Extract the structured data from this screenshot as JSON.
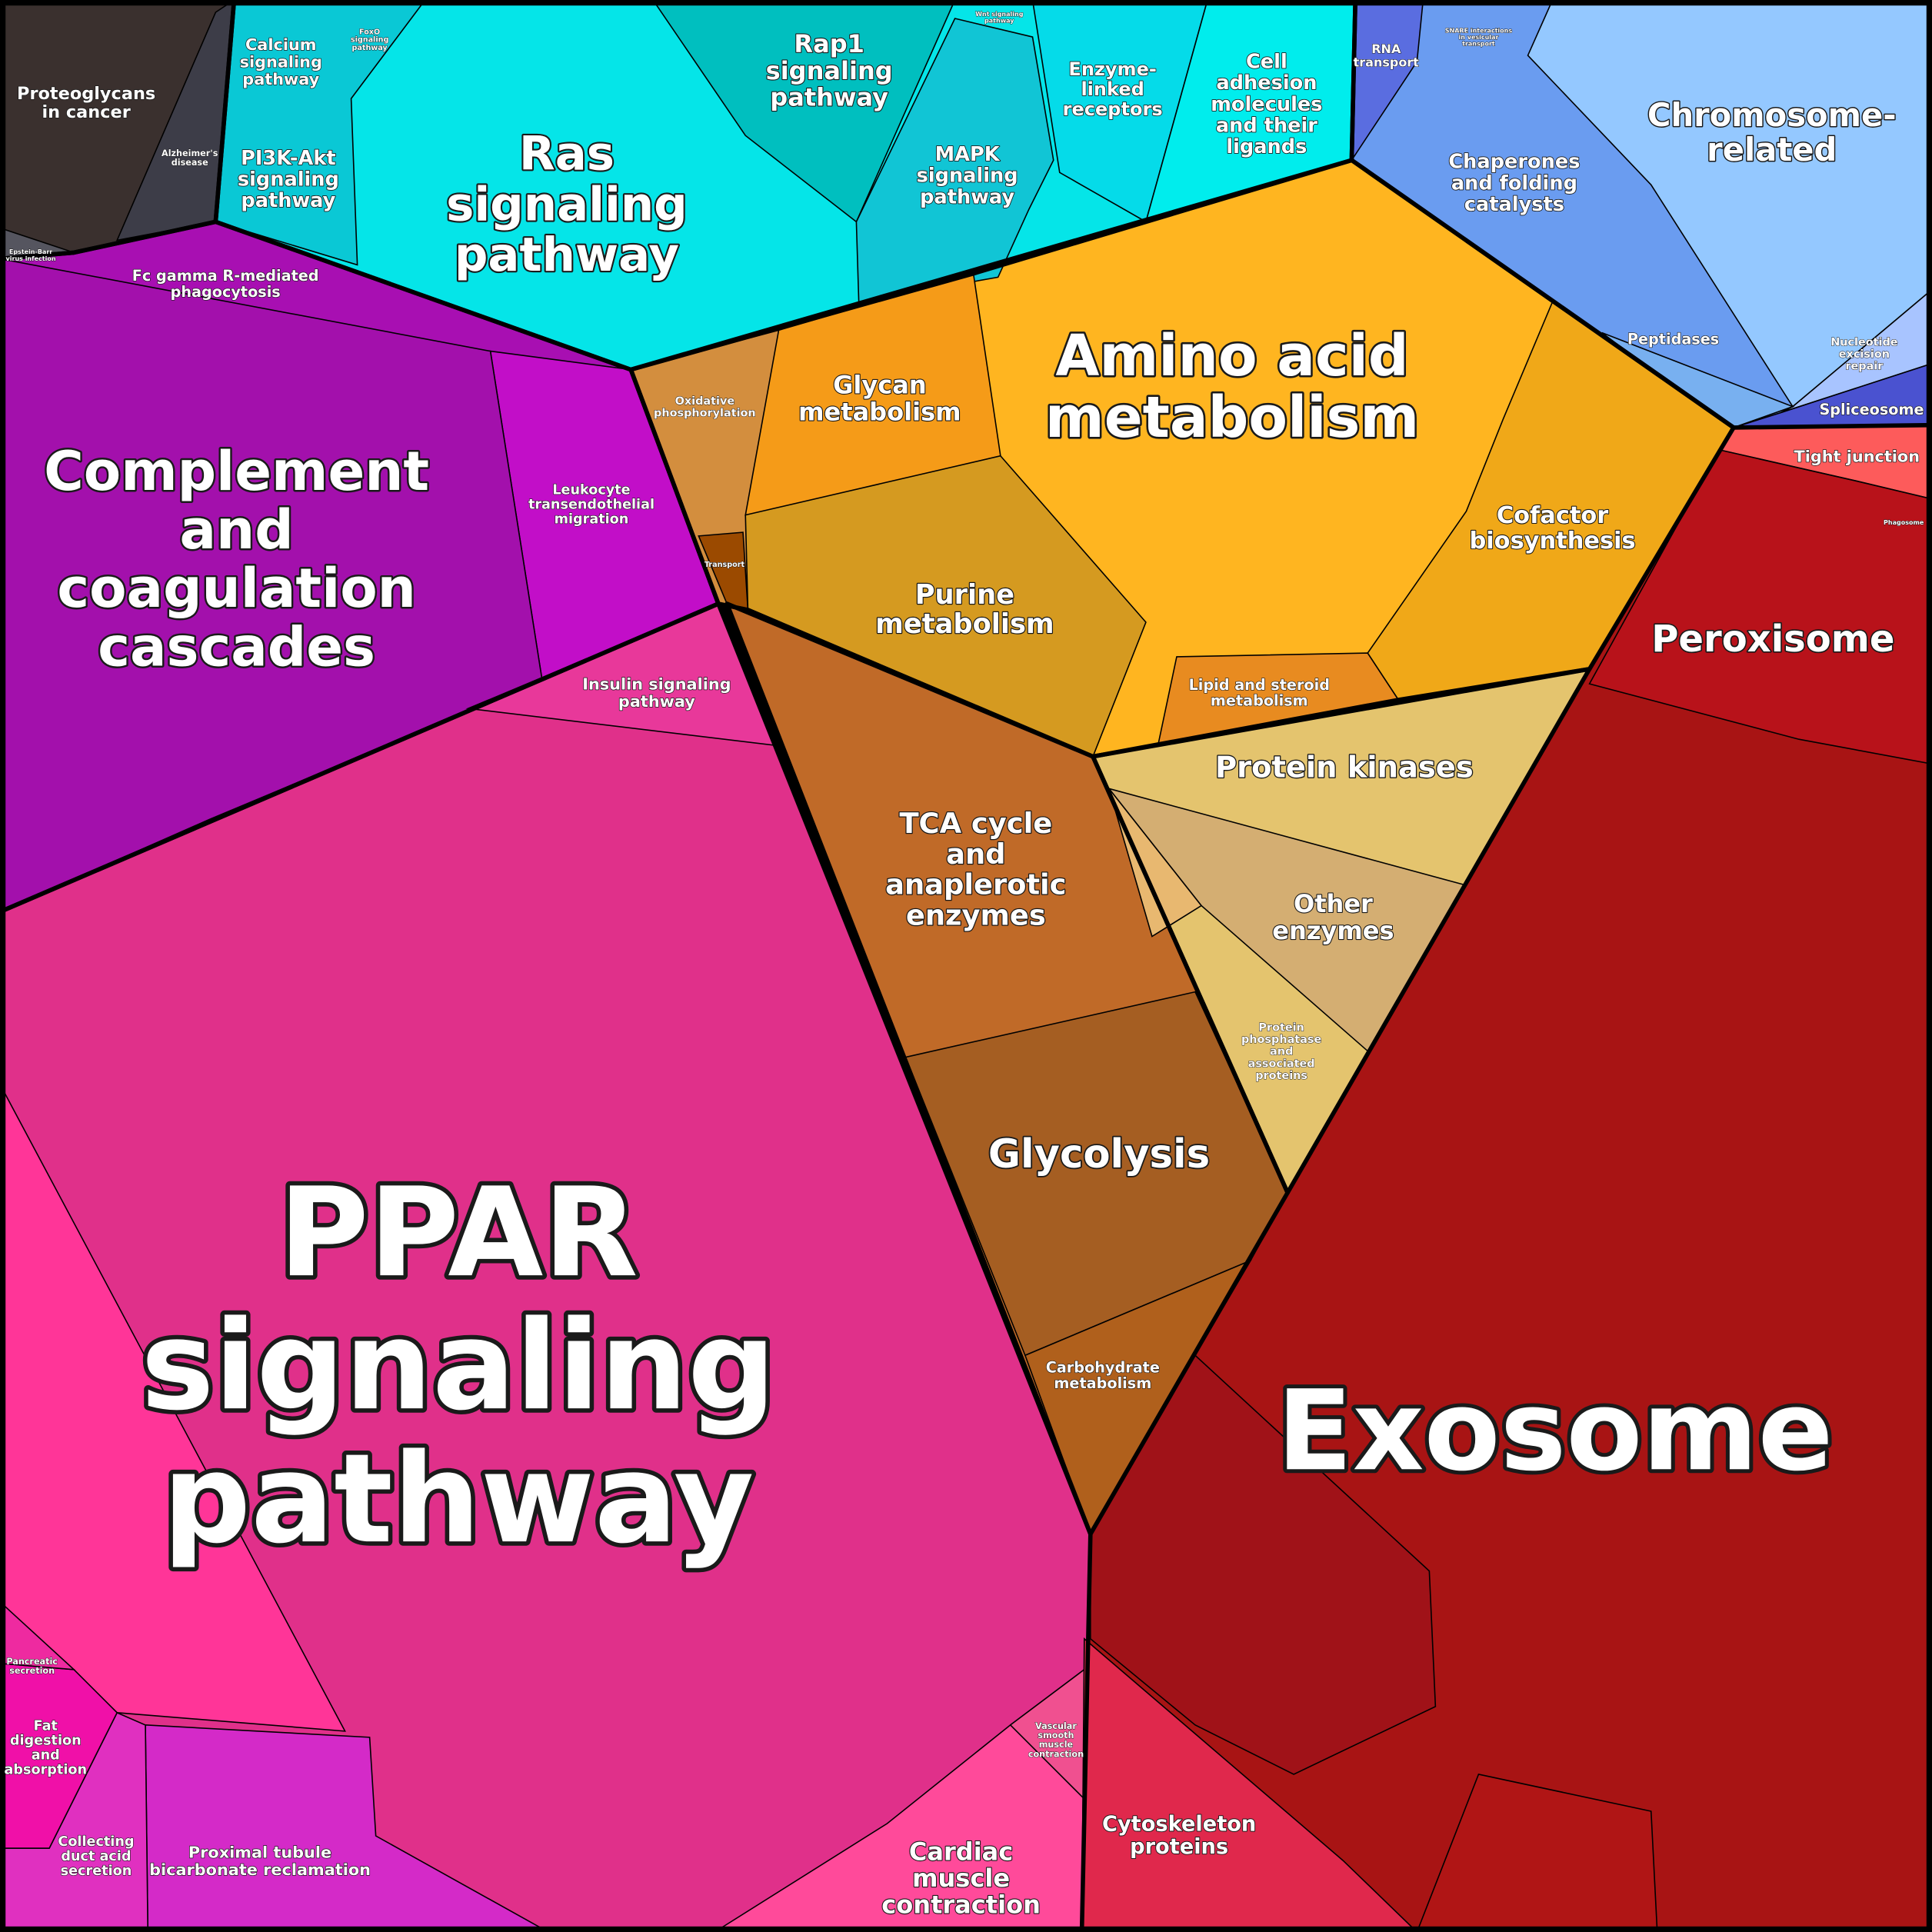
{
  "cells": [
    {
      "lines": [
        "Proteoglycans",
        "in cancer"
      ]
    },
    {
      "lines": [
        "Alzheimer's",
        "disease"
      ]
    },
    {
      "lines": [
        "Epstein-Barr",
        "virus infection"
      ]
    },
    {
      "lines": [
        "Calcium",
        "signaling",
        "pathway"
      ]
    },
    {
      "lines": [
        "FoxO",
        "signaling",
        "pathway"
      ]
    },
    {
      "lines": [
        "PI3K-Akt",
        "signaling",
        "pathway"
      ]
    },
    {
      "lines": [
        "Ras",
        "signaling",
        "pathway"
      ]
    },
    {
      "lines": [
        "Rap1",
        "signaling",
        "pathway"
      ]
    },
    {
      "lines": [
        "Wnt signaling",
        "pathway"
      ]
    },
    {
      "lines": [
        "MAPK",
        "signaling",
        "pathway"
      ]
    },
    {
      "lines": [
        "Enzyme-",
        "linked",
        "receptors"
      ]
    },
    {
      "lines": [
        "Cell",
        "adhesion",
        "molecules",
        "and their",
        "ligands"
      ]
    },
    {
      "lines": [
        "RNA",
        "transport"
      ]
    },
    {
      "lines": [
        "SNARE interactions",
        "in vesicular",
        "transport"
      ]
    },
    {
      "lines": [
        "Chromosome-",
        "related"
      ]
    },
    {
      "lines": [
        "Chaperones",
        "and folding",
        "catalysts"
      ]
    },
    {
      "lines": [
        "Peptidases"
      ]
    },
    {
      "lines": [
        "Nucleotide",
        "excision",
        "repair"
      ]
    },
    {
      "lines": [
        "Spliceosome"
      ]
    },
    {
      "lines": [
        "Fc gamma R-mediated",
        "phagocytosis"
      ]
    },
    {
      "lines": [
        "Complement",
        "and",
        "coagulation",
        "cascades"
      ]
    },
    {
      "lines": [
        "Leukocyte",
        "transendothelial",
        "migration"
      ]
    },
    {
      "lines": [
        "Oxidative",
        "phosphorylation"
      ]
    },
    {
      "lines": [
        "Transport"
      ]
    },
    {
      "lines": [
        "Glycan",
        "metabolism"
      ]
    },
    {
      "lines": [
        "Amino acid",
        "metabolism"
      ]
    },
    {
      "lines": [
        "Cofactor",
        "biosynthesis"
      ]
    },
    {
      "lines": [
        "Purine",
        "metabolism"
      ]
    },
    {
      "lines": [
        "Lipid and steroid",
        "metabolism"
      ]
    },
    {
      "lines": [
        "Insulin signaling",
        "pathway"
      ]
    },
    {
      "lines": [
        "Protein kinases"
      ]
    },
    {
      "lines": [
        "TCA cycle",
        "and",
        "anaplerotic",
        "enzymes"
      ]
    },
    {
      "lines": [
        "Other",
        "enzymes"
      ]
    },
    {
      "lines": [
        "Protein",
        "phosphatase",
        "and",
        "associated",
        "proteins"
      ]
    },
    {
      "lines": [
        "Glycolysis"
      ]
    },
    {
      "lines": [
        "Carbohydrate",
        "metabolism"
      ]
    },
    {
      "lines": [
        "Tight junction"
      ]
    },
    {
      "lines": [
        "Phagosome"
      ]
    },
    {
      "lines": [
        "Peroxisome"
      ]
    },
    {
      "lines": [
        "PPAR",
        "signaling",
        "pathway"
      ]
    },
    {
      "lines": [
        "Exosome"
      ]
    },
    {
      "lines": [
        "Pancreatic",
        "secretion"
      ]
    },
    {
      "lines": [
        "Fat",
        "digestion",
        "and",
        "absorption"
      ]
    },
    {
      "lines": [
        "Collecting",
        "duct acid",
        "secretion"
      ]
    },
    {
      "lines": [
        "Proximal tubule",
        "bicarbonate reclamation"
      ]
    },
    {
      "lines": [
        "Vascular",
        "smooth",
        "muscle",
        "contraction"
      ]
    },
    {
      "lines": [
        "Cardiac",
        "muscle",
        "contraction"
      ]
    },
    {
      "lines": [
        "Cytoskeleton",
        "proteins"
      ]
    }
  ]
}
